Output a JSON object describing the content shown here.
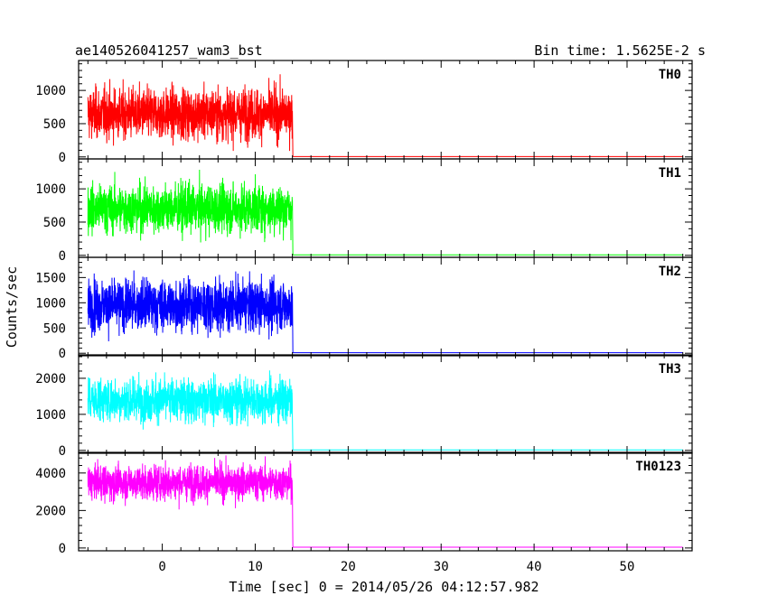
{
  "header": {
    "title": "ae140526041257_wam3_bst",
    "bin_time": "Bin time: 1.5625E-2 s"
  },
  "chart_data": {
    "type": "line",
    "xlabel": "Time [sec] 0 = 2014/05/26 04:12:57.982",
    "ylabel": "Counts/sec",
    "xlim": [
      -9,
      57
    ],
    "xticks": [
      0,
      10,
      20,
      30,
      40,
      50
    ],
    "burst_end_time": 14,
    "panels": [
      {
        "name": "TH0",
        "color": "#ff0000",
        "ylim": [
          -30,
          1450
        ],
        "yticks": [
          0,
          500,
          1000
        ],
        "burst": {
          "start": -8,
          "end": 14,
          "mean": 650,
          "min": 90,
          "max": 1430
        },
        "tail_level": 5
      },
      {
        "name": "TH1",
        "color": "#00ff00",
        "ylim": [
          -30,
          1450
        ],
        "yticks": [
          0,
          500,
          1000
        ],
        "burst": {
          "start": -8,
          "end": 14,
          "mean": 700,
          "min": 100,
          "max": 1400
        },
        "tail_level": 8
      },
      {
        "name": "TH2",
        "color": "#0000ff",
        "ylim": [
          -50,
          1900
        ],
        "yticks": [
          0,
          500,
          1000,
          1500
        ],
        "burst": {
          "start": -8,
          "end": 14,
          "mean": 950,
          "min": 60,
          "max": 1850
        },
        "tail_level": 10
      },
      {
        "name": "TH3",
        "color": "#00ffff",
        "ylim": [
          -80,
          2650
        ],
        "yticks": [
          0,
          1000,
          2000
        ],
        "burst": {
          "start": -8,
          "end": 14,
          "mean": 1400,
          "min": 400,
          "max": 2550
        },
        "tail_level": 15
      },
      {
        "name": "TH0123",
        "color": "#ff00ff",
        "ylim": [
          -150,
          5100
        ],
        "yticks": [
          0,
          2000,
          4000
        ],
        "burst": {
          "start": -8,
          "end": 14,
          "mean": 3500,
          "min": 1700,
          "max": 4950
        },
        "tail_level": 40
      }
    ]
  }
}
